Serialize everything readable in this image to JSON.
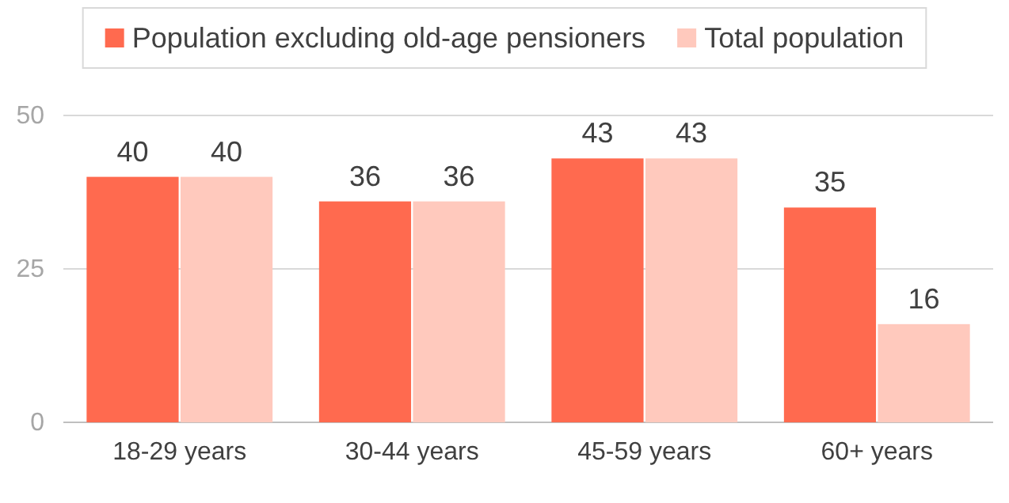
{
  "chart_data": {
    "type": "bar",
    "categories": [
      "18-29 years",
      "30-44 years",
      "45-59 years",
      "60+ years"
    ],
    "series": [
      {
        "name": "Population excluding old-age pensioners",
        "color": "#ff6a4f",
        "values": [
          40,
          36,
          43,
          35
        ]
      },
      {
        "name": "Total population",
        "color": "#ffc9bd",
        "values": [
          40,
          36,
          43,
          16
        ]
      }
    ],
    "ylim": [
      0,
      50
    ],
    "yticks": [
      0,
      25,
      50
    ],
    "grid": "y",
    "legend": "top",
    "data_labels": true
  }
}
